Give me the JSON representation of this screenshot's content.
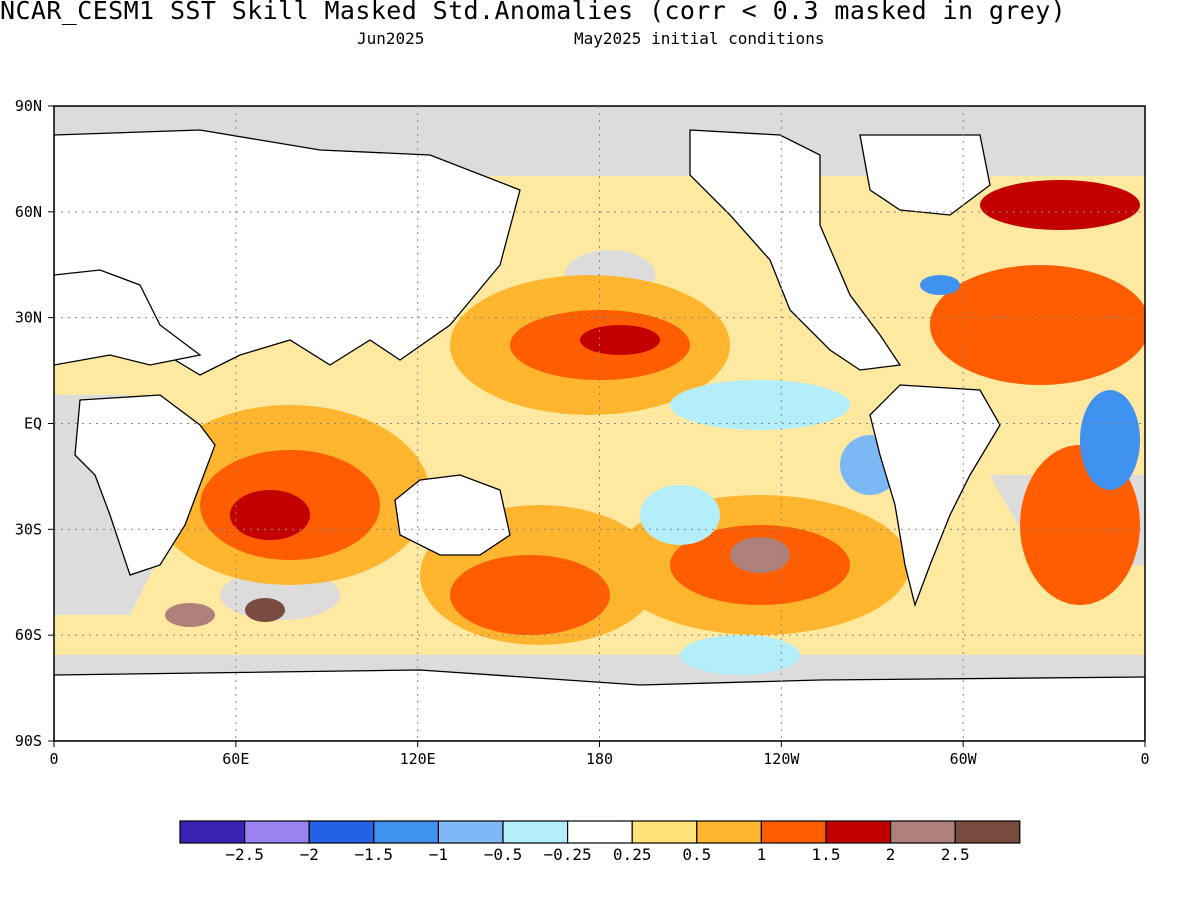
{
  "title": "NCAR_CESM1  SST Skill Masked Std.Anomalies (corr < 0.3 masked in grey)",
  "subtitle_left": "Jun2025",
  "subtitle_right": "May2025 initial conditions",
  "map": {
    "lat_labels": [
      {
        "lat": 90,
        "label": "90N"
      },
      {
        "lat": 60,
        "label": "60N"
      },
      {
        "lat": 30,
        "label": "30N"
      },
      {
        "lat": 0,
        "label": "EQ"
      },
      {
        "lat": -30,
        "label": "30S"
      },
      {
        "lat": -60,
        "label": "60S"
      },
      {
        "lat": -90,
        "label": "90S"
      }
    ],
    "lon_labels": [
      {
        "lon": 0,
        "label": "0"
      },
      {
        "lon": 60,
        "label": "60E"
      },
      {
        "lon": 120,
        "label": "120E"
      },
      {
        "lon": 180,
        "label": "180"
      },
      {
        "lon": 240,
        "label": "120W"
      },
      {
        "lon": 300,
        "label": "60W"
      },
      {
        "lon": 360,
        "label": "0"
      }
    ],
    "mask_color": "#dcdcdc",
    "land_color": "#ffffff",
    "coast_color": "#000000"
  },
  "colorbar": {
    "colors": [
      "#3a22b4",
      "#9a82f0",
      "#2361e6",
      "#3f92f0",
      "#7bb8f4",
      "#b4eefa",
      "#ffffff",
      "#ffe37a",
      "#ffb52e",
      "#ff5d00",
      "#c30000",
      "#ad8179",
      "#7a4b40"
    ],
    "labels": [
      "−2.5",
      "−2",
      "−1.5",
      "−1",
      "−0.5",
      "−0.25",
      "0.25",
      "0.5",
      "1",
      "1.5",
      "2",
      "2.5"
    ]
  }
}
